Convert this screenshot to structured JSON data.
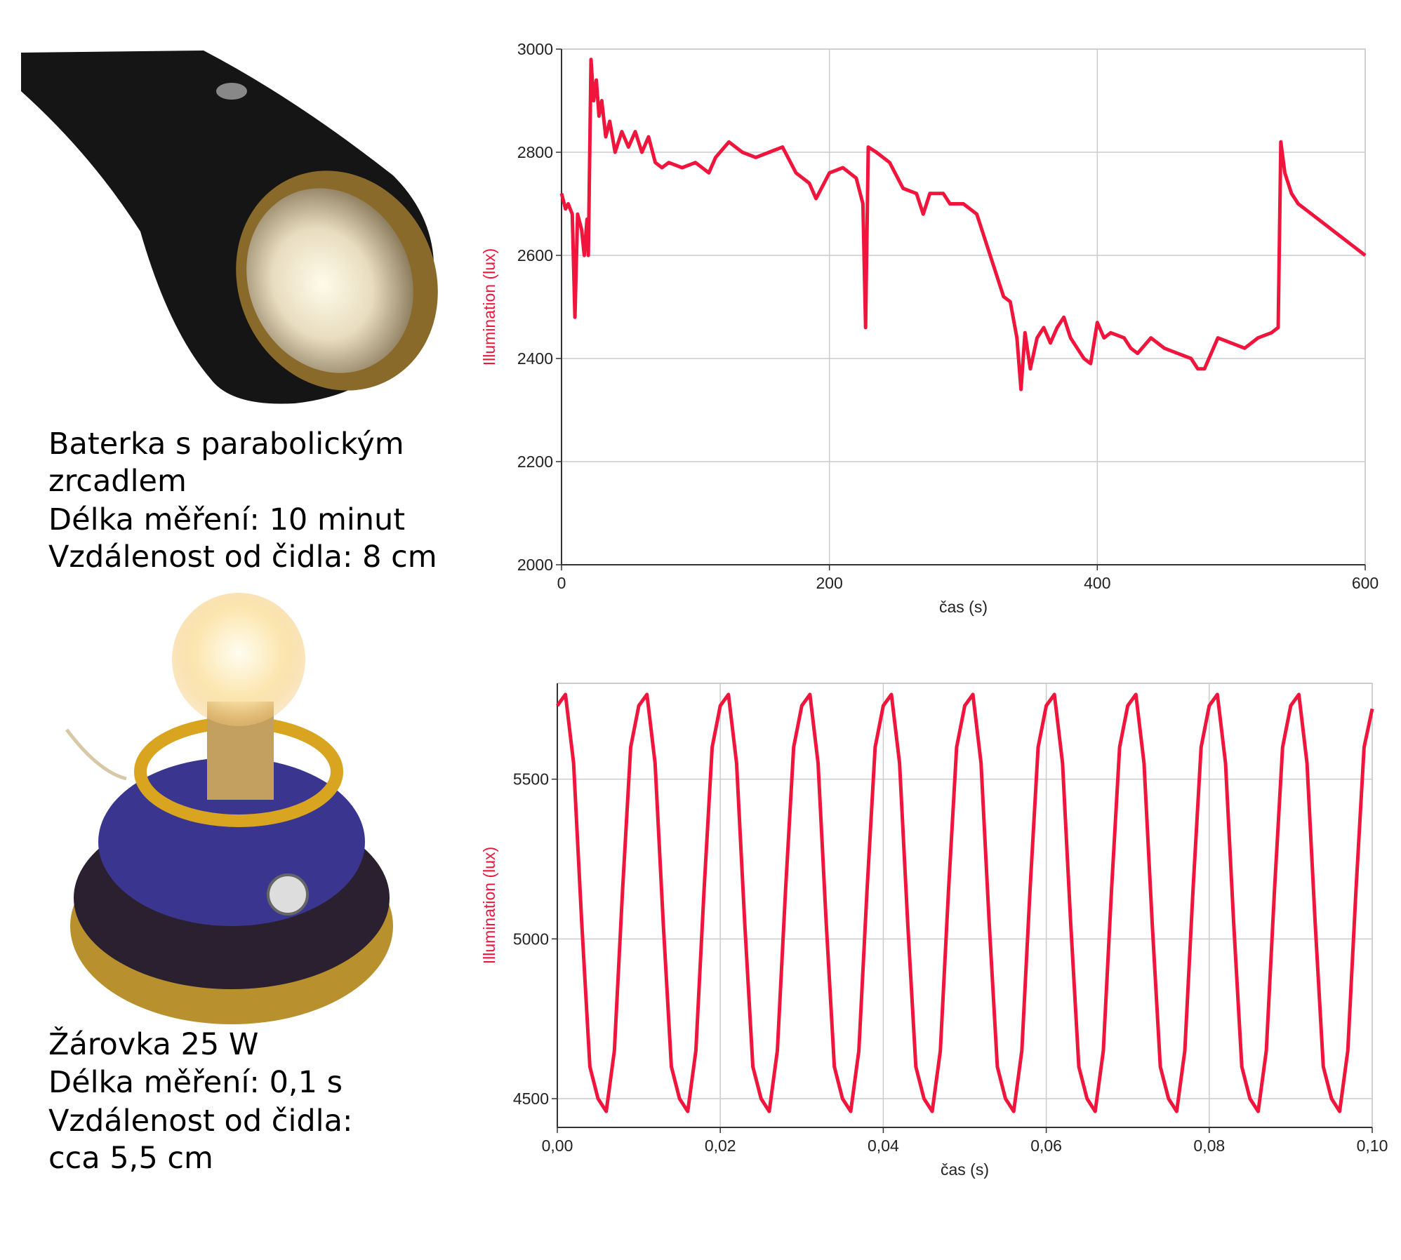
{
  "captions": [
    [
      "Baterka s parabolickým",
      "zrcadlem",
      "Délka měření: 10 minut",
      "Vzdálenost od čidla: 8 cm"
    ],
    [
      "Žárovka 25 W",
      "Délka měření: 0,1 s",
      "Vzdálenost od čidla:",
      "cca 5,5 cm"
    ]
  ],
  "chart_data": [
    {
      "type": "line",
      "xlabel": "čas (s)",
      "ylabel": "Illumination (lux)",
      "color": "#f0153c",
      "grid": true,
      "xlim": [
        0,
        600
      ],
      "ylim": [
        2000,
        3000
      ],
      "xticks": [
        0,
        200,
        400,
        600
      ],
      "yticks": [
        2000,
        2200,
        2400,
        2600,
        2800,
        3000
      ],
      "x": [
        0,
        3,
        5,
        8,
        10,
        12,
        15,
        17,
        19,
        20,
        22,
        24,
        26,
        28,
        30,
        33,
        36,
        40,
        45,
        50,
        55,
        60,
        65,
        70,
        75,
        80,
        90,
        100,
        110,
        115,
        125,
        135,
        145,
        155,
        165,
        175,
        185,
        190,
        200,
        210,
        220,
        225,
        227,
        229,
        235,
        245,
        255,
        265,
        270,
        275,
        285,
        290,
        300,
        310,
        320,
        330,
        335,
        340,
        343,
        346,
        350,
        355,
        360,
        365,
        370,
        375,
        380,
        385,
        390,
        395,
        400,
        405,
        410,
        420,
        425,
        430,
        440,
        450,
        460,
        470,
        475,
        480,
        485,
        490,
        500,
        510,
        520,
        530,
        535,
        537,
        540,
        545,
        550,
        560,
        570,
        580,
        590,
        600
      ],
      "values": [
        2720,
        2690,
        2700,
        2680,
        2480,
        2680,
        2650,
        2600,
        2670,
        2600,
        2980,
        2900,
        2940,
        2870,
        2900,
        2830,
        2860,
        2800,
        2840,
        2810,
        2840,
        2800,
        2830,
        2780,
        2770,
        2780,
        2770,
        2780,
        2760,
        2790,
        2820,
        2800,
        2790,
        2800,
        2810,
        2760,
        2740,
        2710,
        2760,
        2770,
        2750,
        2700,
        2460,
        2810,
        2800,
        2780,
        2730,
        2720,
        2680,
        2720,
        2720,
        2700,
        2700,
        2680,
        2600,
        2520,
        2510,
        2440,
        2340,
        2450,
        2380,
        2440,
        2460,
        2430,
        2460,
        2480,
        2440,
        2420,
        2400,
        2390,
        2470,
        2440,
        2450,
        2440,
        2420,
        2410,
        2440,
        2420,
        2410,
        2400,
        2380,
        2380,
        2410,
        2440,
        2430,
        2420,
        2440,
        2450,
        2460,
        2820,
        2760,
        2720,
        2700,
        2680,
        2660,
        2640,
        2620,
        2600
      ]
    },
    {
      "type": "line",
      "xlabel": "čas (s)",
      "ylabel": "Illumination (lux)",
      "color": "#f0153c",
      "grid": true,
      "xlim": [
        0,
        0.1
      ],
      "ylim": [
        4410,
        5800
      ],
      "xticks": [
        {
          "value": 0,
          "label": "0,00"
        },
        {
          "value": 0.02,
          "label": "0,02"
        },
        {
          "value": 0.04,
          "label": "0,04"
        },
        {
          "value": 0.06,
          "label": "0,06"
        },
        {
          "value": 0.08,
          "label": "0,08"
        },
        {
          "value": 0.1,
          "label": "0,10"
        }
      ],
      "yticks": [
        4500,
        5000,
        5500
      ],
      "x": [
        0,
        0.001,
        0.002,
        0.003,
        0.004,
        0.005,
        0.006,
        0.007,
        0.008,
        0.009,
        0.01,
        0.011,
        0.012,
        0.013,
        0.014,
        0.015,
        0.016,
        0.017,
        0.018,
        0.019,
        0.02,
        0.021,
        0.022,
        0.023,
        0.024,
        0.025,
        0.026,
        0.027,
        0.028,
        0.029,
        0.03,
        0.031,
        0.032,
        0.033,
        0.034,
        0.035,
        0.036,
        0.037,
        0.038,
        0.039,
        0.04,
        0.041,
        0.042,
        0.043,
        0.044,
        0.045,
        0.046,
        0.047,
        0.048,
        0.049,
        0.05,
        0.051,
        0.052,
        0.053,
        0.054,
        0.055,
        0.056,
        0.057,
        0.058,
        0.059,
        0.06,
        0.061,
        0.062,
        0.063,
        0.064,
        0.065,
        0.066,
        0.067,
        0.068,
        0.069,
        0.07,
        0.071,
        0.072,
        0.073,
        0.074,
        0.075,
        0.076,
        0.077,
        0.078,
        0.079,
        0.08,
        0.081,
        0.082,
        0.083,
        0.084,
        0.085,
        0.086,
        0.087,
        0.088,
        0.089,
        0.09,
        0.091,
        0.092,
        0.093,
        0.094,
        0.095,
        0.096,
        0.097,
        0.098,
        0.099,
        0.1
      ],
      "values": [
        5730,
        5765,
        5550,
        5050,
        4600,
        4500,
        4460,
        4650,
        5150,
        5600,
        5730,
        5765,
        5550,
        5050,
        4600,
        4500,
        4460,
        4650,
        5150,
        5600,
        5730,
        5765,
        5550,
        5050,
        4600,
        4500,
        4460,
        4650,
        5150,
        5600,
        5730,
        5765,
        5550,
        5050,
        4600,
        4500,
        4460,
        4650,
        5150,
        5600,
        5730,
        5765,
        5550,
        5050,
        4600,
        4500,
        4460,
        4650,
        5150,
        5600,
        5730,
        5765,
        5550,
        5050,
        4600,
        4500,
        4460,
        4650,
        5150,
        5600,
        5730,
        5765,
        5550,
        5050,
        4600,
        4500,
        4460,
        4650,
        5150,
        5600,
        5730,
        5765,
        5550,
        5050,
        4600,
        4500,
        4460,
        4650,
        5150,
        5600,
        5730,
        5765,
        5550,
        5050,
        4600,
        4500,
        4460,
        4650,
        5150,
        5600,
        5730,
        5765,
        5550,
        5050,
        4600,
        4500,
        4460,
        4650,
        5150,
        5600,
        5720
      ]
    }
  ]
}
